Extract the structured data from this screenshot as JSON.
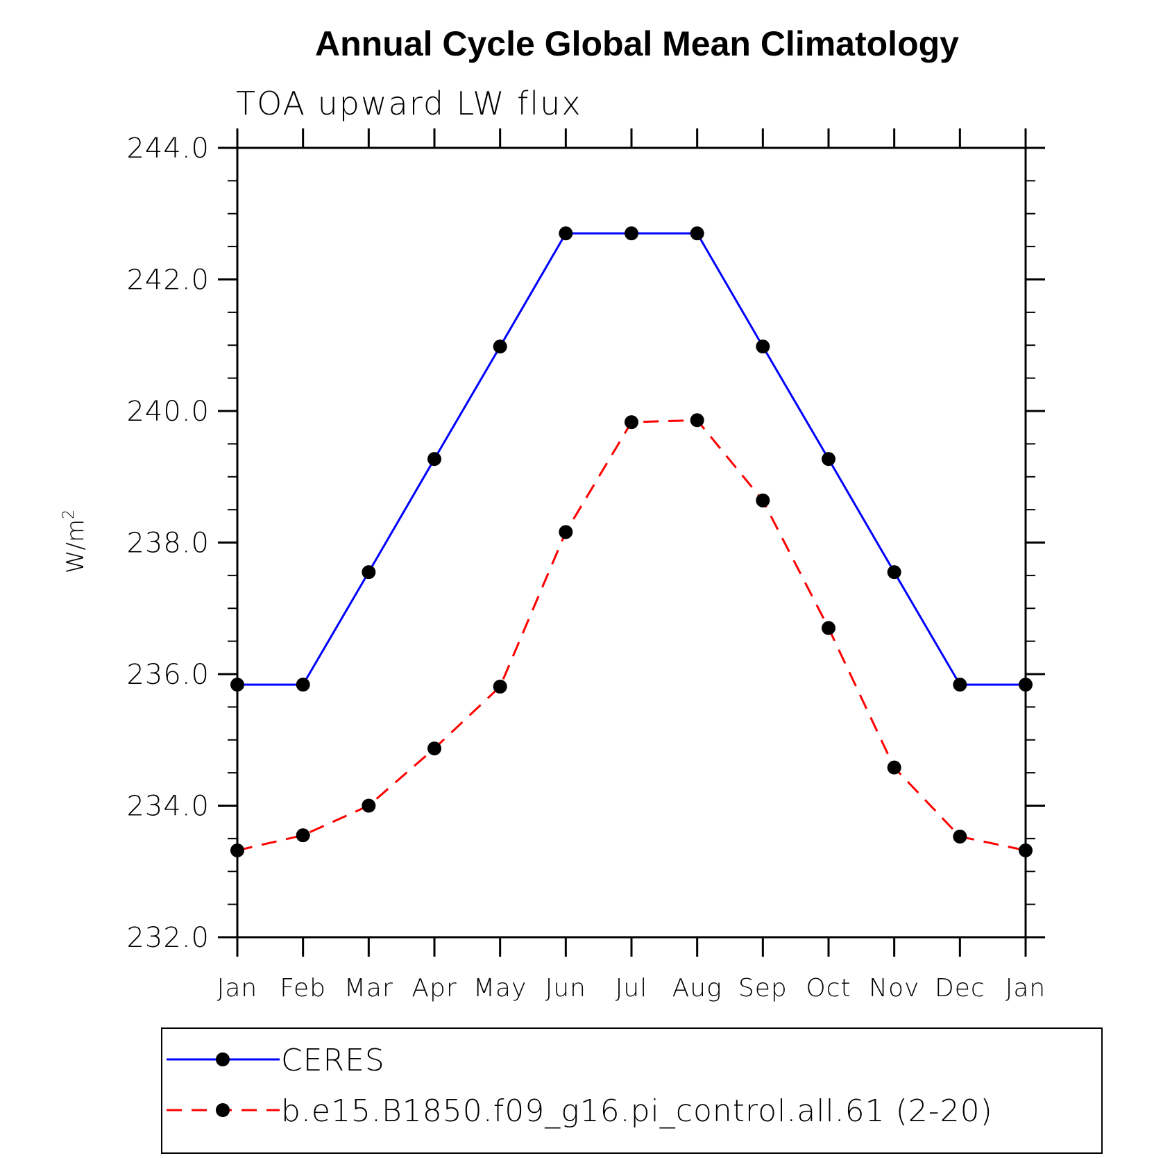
{
  "chart_data": {
    "type": "line",
    "title": "Annual Cycle Global Mean Climatology",
    "subtitle": "TOA upward LW flux",
    "ylabel": "W/m",
    "ylabel_sup": "2",
    "xlabel": "",
    "categories": [
      "Jan",
      "Feb",
      "Mar",
      "Apr",
      "May",
      "Jun",
      "Jul",
      "Aug",
      "Sep",
      "Oct",
      "Nov",
      "Dec",
      "Jan"
    ],
    "ylim": [
      232.0,
      244.0
    ],
    "yticks": [
      "232.0",
      "234.0",
      "236.0",
      "238.0",
      "240.0",
      "242.0",
      "244.0"
    ],
    "yticks_values": [
      232,
      234,
      236,
      238,
      240,
      242,
      244
    ],
    "grid": false,
    "legend_position": "bottom",
    "series": [
      {
        "name": "CERES",
        "color": "#0000ff",
        "dash": "solid",
        "values": [
          235.84,
          235.84,
          237.55,
          239.27,
          240.98,
          242.7,
          242.7,
          242.7,
          240.98,
          239.27,
          237.55,
          235.84,
          235.84
        ]
      },
      {
        "name": "b.e15.B1850.f09_g16.pi_control.all.61 (2-20)",
        "color": "#ff0000",
        "dash": "dashed",
        "values": [
          233.32,
          233.55,
          234.0,
          234.87,
          235.81,
          238.16,
          239.83,
          239.86,
          238.64,
          236.7,
          234.58,
          233.53,
          233.32
        ]
      }
    ]
  }
}
